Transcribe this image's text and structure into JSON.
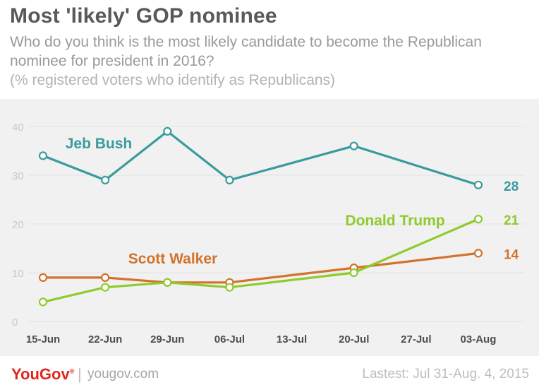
{
  "header": {
    "title": "Most 'likely' GOP nominee",
    "subtitle": "Who do you think is the most likely candidate to become the Republican nominee for president in 2016?",
    "note": "(% registered voters who identify as Republicans)"
  },
  "footer": {
    "logo": "YouGov",
    "logo_mark": "®",
    "divider": "|",
    "site": "yougov.com",
    "latest": "Lastest: Jul 31-Aug. 4, 2015"
  },
  "colors": {
    "bush": "#3a9b9d",
    "trump": "#8ecb2d",
    "walker": "#d2722c",
    "axis_text": "#c8c8c8",
    "grid": "#e2e2e2"
  },
  "chart_data": {
    "type": "line",
    "categories": [
      "15-Jun",
      "22-Jun",
      "29-Jun",
      "06-Jul",
      "13-Jul",
      "20-Jul",
      "27-Jul",
      "03-Aug"
    ],
    "ylim": [
      0,
      40
    ],
    "yticks": [
      0,
      10,
      20,
      30,
      40
    ],
    "grid": true,
    "series": [
      {
        "name": "Jeb Bush",
        "key": "bush",
        "color": "#3a9b9d",
        "points": [
          [
            0,
            34
          ],
          [
            1,
            29
          ],
          [
            2,
            39
          ],
          [
            3,
            29
          ],
          [
            5,
            36
          ],
          [
            7,
            28
          ]
        ],
        "end_label": "28"
      },
      {
        "name": "Donald Trump",
        "key": "trump",
        "color": "#8ecb2d",
        "points": [
          [
            0,
            4
          ],
          [
            1,
            7
          ],
          [
            2,
            8
          ],
          [
            3,
            7
          ],
          [
            5,
            10
          ],
          [
            7,
            21
          ]
        ],
        "end_label": "21"
      },
      {
        "name": "Scott Walker",
        "key": "walker",
        "color": "#d2722c",
        "points": [
          [
            0,
            9
          ],
          [
            1,
            9
          ],
          [
            2,
            8
          ],
          [
            3,
            8
          ],
          [
            5,
            11
          ],
          [
            7,
            14
          ]
        ],
        "end_label": "14"
      }
    ]
  }
}
